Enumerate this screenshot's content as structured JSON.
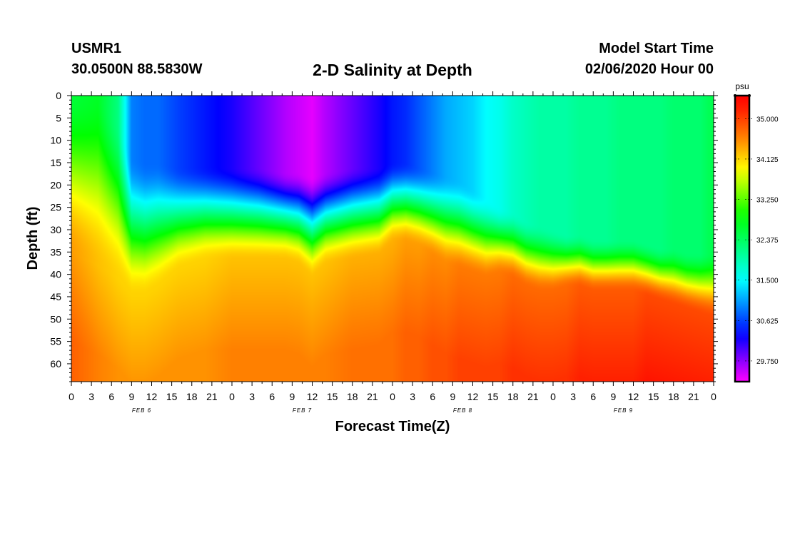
{
  "header": {
    "station": "USMR1",
    "coords": "30.0500N 88.5830W",
    "title": "2-D Salinity at Depth",
    "start_label": "Model Start Time",
    "start_value": "02/06/2020 Hour 00"
  },
  "colors": {
    "magenta": "#ff00ff",
    "blue": "#0000ff",
    "cyan": "#00ffff",
    "green": "#00ff00",
    "yellow": "#ffff00",
    "orange": "#ff8000",
    "red": "#ff0000",
    "axis": "#000000"
  },
  "chart_data": {
    "type": "heatmap",
    "title": "2-D Salinity at Depth",
    "xlabel": "Forecast Time(Z)",
    "ylabel": "Depth (ft)",
    "x_tick_labels": [
      "0",
      "3",
      "6",
      "9",
      "12",
      "15",
      "18",
      "21",
      "0",
      "3",
      "6",
      "9",
      "12",
      "15",
      "18",
      "21",
      "0",
      "3",
      "6",
      "9",
      "12",
      "15",
      "18",
      "21",
      "0",
      "3",
      "6",
      "9",
      "12",
      "15",
      "18",
      "21",
      "0"
    ],
    "x_range_hours": [
      0,
      96
    ],
    "day_labels": [
      {
        "label": "FEB 6",
        "hour": 12
      },
      {
        "label": "FEB 7",
        "hour": 36
      },
      {
        "label": "FEB 8",
        "hour": 60
      },
      {
        "label": "FEB 9",
        "hour": 84
      }
    ],
    "y_ticks": [
      0,
      5,
      10,
      15,
      20,
      25,
      30,
      35,
      40,
      45,
      50,
      55,
      60
    ],
    "ylim": [
      0,
      64
    ],
    "colorbar": {
      "unit": "psu",
      "ticks": [
        35.0,
        34.125,
        33.25,
        32.375,
        31.5,
        30.625,
        29.75
      ],
      "tick_labels": [
        "35.000",
        "34.125",
        "33.250",
        "32.375",
        "31.500",
        "30.625",
        "29.750"
      ],
      "range": [
        29.3,
        35.5
      ]
    },
    "profile_hours": [
      0,
      4,
      7,
      9,
      11,
      13,
      16,
      20,
      24,
      28,
      32,
      34,
      36,
      38,
      42,
      46,
      48,
      50,
      52,
      54,
      56,
      58,
      60,
      62,
      64,
      66,
      68,
      70,
      72,
      74,
      76,
      78,
      80,
      82,
      84,
      86,
      88,
      90,
      92,
      94,
      96
    ],
    "surface_salinity": [
      32.6,
      32.7,
      32.2,
      30.9,
      30.8,
      30.8,
      30.6,
      30.4,
      30.2,
      29.9,
      29.6,
      29.5,
      29.4,
      29.6,
      29.9,
      30.2,
      30.4,
      30.5,
      30.7,
      30.9,
      31.1,
      31.2,
      31.3,
      31.5,
      31.6,
      31.8,
      31.9,
      32.0,
      32.0,
      32.0,
      32.1,
      32.1,
      32.1,
      32.2,
      32.2,
      32.2,
      32.2,
      32.3,
      32.3,
      32.3,
      32.5
    ],
    "upper_layer_base_ft": [
      0,
      0,
      6,
      14,
      15,
      15,
      16,
      16,
      16,
      16,
      17,
      17,
      18,
      17,
      16,
      16,
      15,
      15,
      16,
      17,
      18,
      19,
      21,
      23,
      25,
      26,
      28,
      29,
      30,
      31,
      31,
      32,
      32,
      33,
      33,
      33,
      34,
      34,
      35,
      35,
      35
    ],
    "halocline_center_ft": [
      26,
      29,
      32,
      36,
      36,
      34,
      30,
      28,
      28,
      28,
      28,
      29,
      32,
      29,
      28,
      27,
      24,
      24,
      25,
      27,
      29,
      30,
      31,
      32,
      31,
      32,
      34,
      35,
      35,
      34,
      34,
      35,
      35,
      35,
      35,
      36,
      37,
      38,
      39,
      40,
      41
    ],
    "bottom_salinity": [
      34.8,
      34.6,
      34.5,
      34.5,
      34.5,
      34.5,
      34.5,
      34.5,
      34.6,
      34.6,
      34.6,
      34.6,
      34.6,
      34.6,
      34.7,
      34.7,
      34.7,
      34.8,
      34.8,
      34.9,
      34.9,
      35.0,
      35.0,
      35.0,
      35.0,
      35.1,
      35.1,
      35.1,
      35.1,
      35.1,
      35.2,
      35.2,
      35.2,
      35.2,
      35.2,
      35.3,
      35.3,
      35.3,
      35.3,
      35.3,
      35.3
    ]
  }
}
